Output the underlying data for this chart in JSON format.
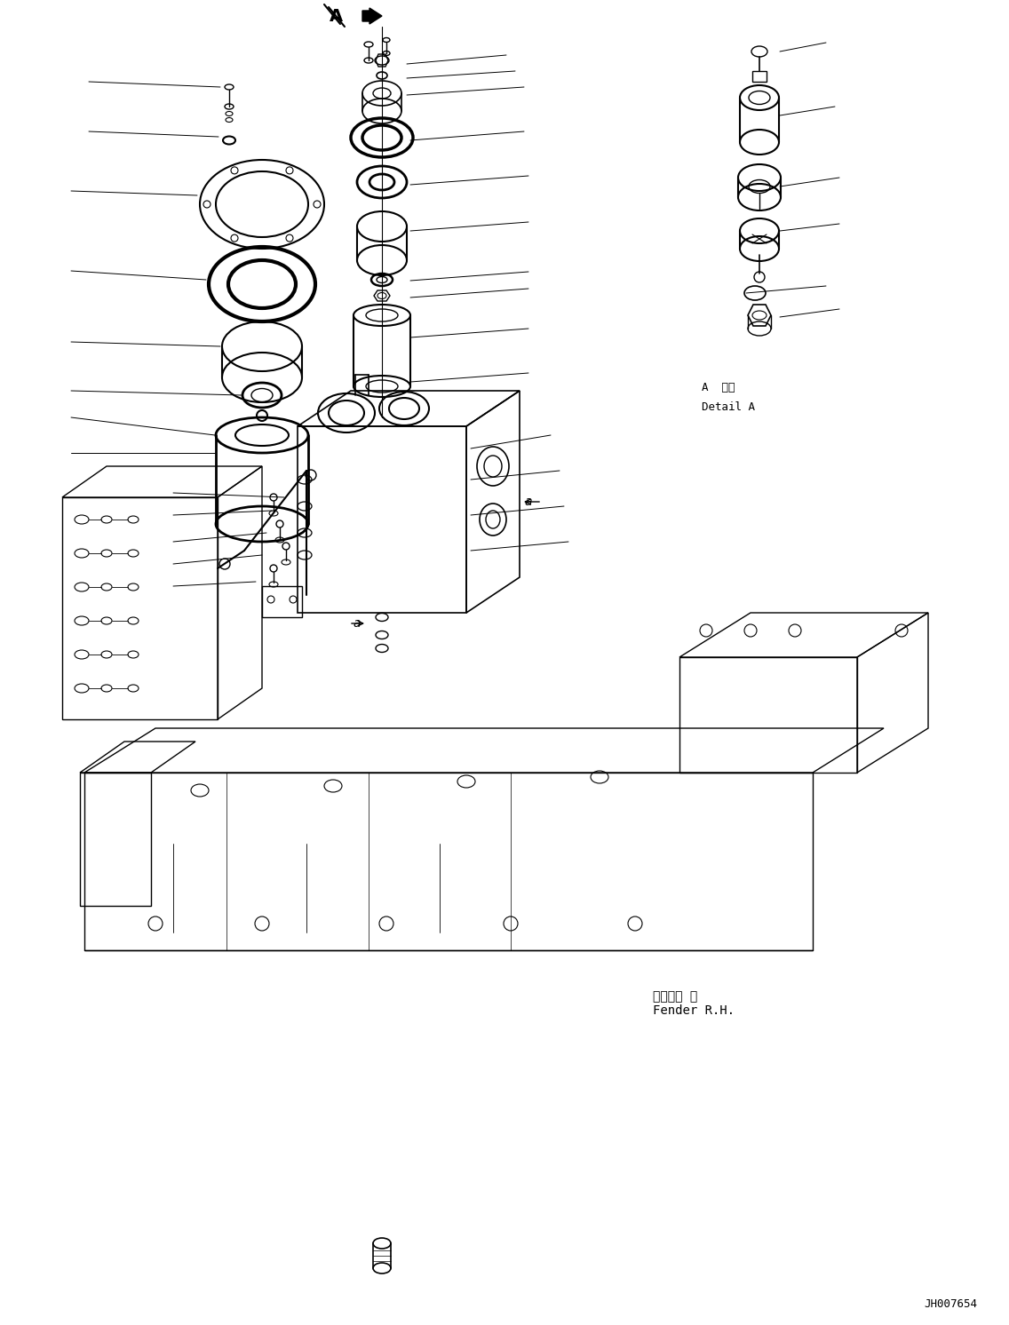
{
  "background_color": "#ffffff",
  "line_color": "#000000",
  "text_color": "#000000",
  "figsize": [
    11.36,
    14.92
  ],
  "dpi": 100,
  "detail_a_label": "A 詳細\nDetail A",
  "fender_label": "フェンダ 右\nFender R.H.",
  "watermark": "JH007654"
}
